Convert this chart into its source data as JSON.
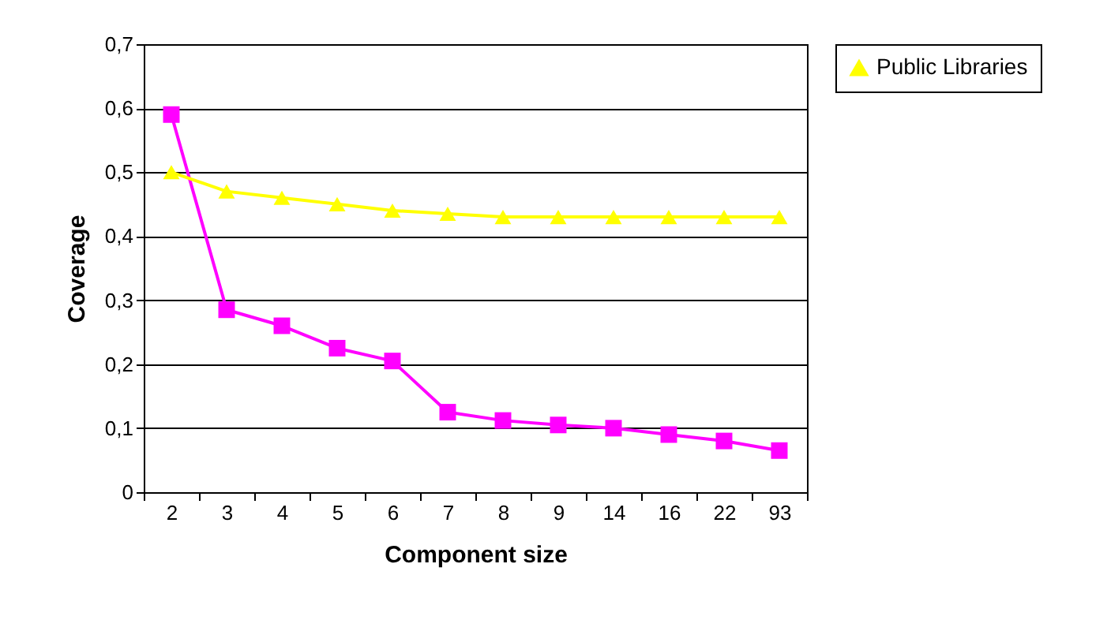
{
  "chart_data": {
    "type": "line",
    "xlabel": "Component size",
    "ylabel": "Coverage",
    "categories": [
      "2",
      "3",
      "4",
      "5",
      "6",
      "7",
      "8",
      "9",
      "14",
      "16",
      "22",
      "93"
    ],
    "series": [
      {
        "color": "#ff00ff",
        "marker": "square",
        "values": [
          0.59,
          0.285,
          0.26,
          0.225,
          0.205,
          0.125,
          0.112,
          0.105,
          0.1,
          0.09,
          0.08,
          0.065
        ]
      },
      {
        "name": "Public Libraries",
        "color": "#ffff00",
        "marker": "triangle",
        "values": [
          0.5,
          0.47,
          0.46,
          0.45,
          0.44,
          0.435,
          0.43,
          0.43,
          0.43,
          0.43,
          0.43,
          0.43
        ]
      }
    ],
    "ylim": [
      0,
      0.7
    ],
    "yticks": [
      {
        "value": 0,
        "label": "0"
      },
      {
        "value": 0.1,
        "label": "0,1"
      },
      {
        "value": 0.2,
        "label": "0,2"
      },
      {
        "value": 0.3,
        "label": "0,3"
      },
      {
        "value": 0.4,
        "label": "0,4"
      },
      {
        "value": 0.5,
        "label": "0,5"
      },
      {
        "value": 0.6,
        "label": "0,6"
      },
      {
        "value": 0.7,
        "label": "0,7"
      }
    ],
    "grid": "y",
    "legend": "right",
    "line_style": "solid"
  }
}
